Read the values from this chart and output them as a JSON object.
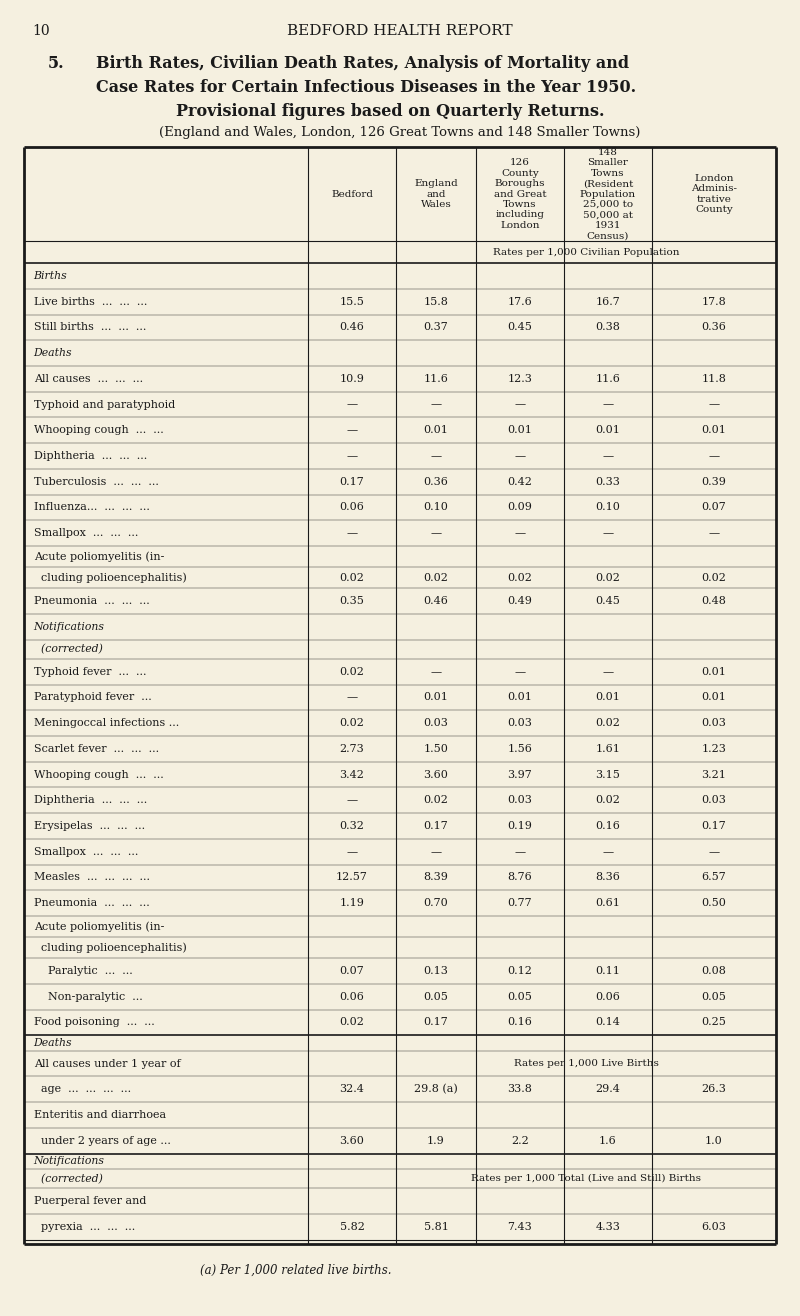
{
  "page_num": "10",
  "page_title": "BEDFORD HEALTH REPORT",
  "section_num": "5.",
  "title_line1": "Birth Rates, Civilian Death Rates, Analysis of Mortality and",
  "title_line2": "Case Rates for Certain Infectious Diseases in the Year 1950.",
  "title_line3": "Provisional figures based on Quarterly Returns.",
  "subtitle": "(England and Wales, London, 126 Great Towns and 148 Smaller Towns)",
  "col_header_texts": [
    "Bedford",
    "England\nand\nWales",
    "126\nCounty\nBoroughs\nand Great\nTowns\nincluding\nLondon",
    "148\nSmaller\nTowns\n(Resident\nPopulation\n25,000 to\n50,000 at\n1931\nCensus)",
    "London\nAdminis-\ntrative\nCounty"
  ],
  "rates_header": "Rates per 1,000 Civilian Population",
  "rows": [
    {
      "label": "Births",
      "bold": true,
      "italic": true,
      "values": [
        "",
        "",
        "",
        "",
        ""
      ]
    },
    {
      "label": "Live births  ...  ...  ...",
      "bold": false,
      "italic": false,
      "values": [
        "15.5",
        "15.8",
        "17.6",
        "16.7",
        "17.8"
      ]
    },
    {
      "label": "Still births  ...  ...  ...",
      "bold": false,
      "italic": false,
      "values": [
        "0.46",
        "0.37",
        "0.45",
        "0.38",
        "0.36"
      ]
    },
    {
      "label": "Deaths",
      "bold": true,
      "italic": true,
      "values": [
        "",
        "",
        "",
        "",
        ""
      ]
    },
    {
      "label": "All causes  ...  ...  ...",
      "bold": false,
      "italic": false,
      "values": [
        "10.9",
        "11.6",
        "12.3",
        "11.6",
        "11.8"
      ]
    },
    {
      "label": "Typhoid and paratyphoid",
      "bold": false,
      "italic": false,
      "values": [
        "—",
        "—",
        "—",
        "—",
        "—"
      ]
    },
    {
      "label": "Whooping cough  ...  ...",
      "bold": false,
      "italic": false,
      "values": [
        "—",
        "0.01",
        "0.01",
        "0.01",
        "0.01"
      ]
    },
    {
      "label": "Diphtheria  ...  ...  ...",
      "bold": false,
      "italic": false,
      "values": [
        "—",
        "—",
        "—",
        "—",
        "—"
      ]
    },
    {
      "label": "Tuberculosis  ...  ...  ...",
      "bold": false,
      "italic": false,
      "values": [
        "0.17",
        "0.36",
        "0.42",
        "0.33",
        "0.39"
      ]
    },
    {
      "label": "Influenza...  ...  ...  ...",
      "bold": false,
      "italic": false,
      "values": [
        "0.06",
        "0.10",
        "0.09",
        "0.10",
        "0.07"
      ]
    },
    {
      "label": "Smallpox  ...  ...  ...",
      "bold": false,
      "italic": false,
      "values": [
        "—",
        "—",
        "—",
        "—",
        "—"
      ]
    },
    {
      "label": "Acute poliomyelitis (in-",
      "bold": false,
      "italic": false,
      "values": [
        "",
        "",
        "",
        "",
        ""
      ]
    },
    {
      "label": "  cluding polioencephalitis)",
      "bold": false,
      "italic": false,
      "values": [
        "0.02",
        "0.02",
        "0.02",
        "0.02",
        "0.02"
      ]
    },
    {
      "label": "Pneumonia  ...  ...  ...",
      "bold": false,
      "italic": false,
      "values": [
        "0.35",
        "0.46",
        "0.49",
        "0.45",
        "0.48"
      ]
    },
    {
      "label": "Notifications",
      "bold": true,
      "italic": true,
      "values": [
        "",
        "",
        "",
        "",
        ""
      ]
    },
    {
      "label": "  (corrected)",
      "bold": true,
      "italic": true,
      "values": [
        "",
        "",
        "",
        "",
        ""
      ]
    },
    {
      "label": "Typhoid fever  ...  ...",
      "bold": false,
      "italic": false,
      "values": [
        "0.02",
        "—",
        "—",
        "—",
        "0.01"
      ]
    },
    {
      "label": "Paratyphoid fever  ...",
      "bold": false,
      "italic": false,
      "values": [
        "—",
        "0.01",
        "0.01",
        "0.01",
        "0.01"
      ]
    },
    {
      "label": "Meningoccal infections ...",
      "bold": false,
      "italic": false,
      "values": [
        "0.02",
        "0.03",
        "0.03",
        "0.02",
        "0.03"
      ]
    },
    {
      "label": "Scarlet fever  ...  ...  ...",
      "bold": false,
      "italic": false,
      "values": [
        "2.73",
        "1.50",
        "1.56",
        "1.61",
        "1.23"
      ]
    },
    {
      "label": "Whooping cough  ...  ...",
      "bold": false,
      "italic": false,
      "values": [
        "3.42",
        "3.60",
        "3.97",
        "3.15",
        "3.21"
      ]
    },
    {
      "label": "Diphtheria  ...  ...  ...",
      "bold": false,
      "italic": false,
      "values": [
        "—",
        "0.02",
        "0.03",
        "0.02",
        "0.03"
      ]
    },
    {
      "label": "Erysipelas  ...  ...  ...",
      "bold": false,
      "italic": false,
      "values": [
        "0.32",
        "0.17",
        "0.19",
        "0.16",
        "0.17"
      ]
    },
    {
      "label": "Smallpox  ...  ...  ...",
      "bold": false,
      "italic": false,
      "values": [
        "—",
        "—",
        "—",
        "—",
        "—"
      ]
    },
    {
      "label": "Measles  ...  ...  ...  ...",
      "bold": false,
      "italic": false,
      "values": [
        "12.57",
        "8.39",
        "8.76",
        "8.36",
        "6.57"
      ]
    },
    {
      "label": "Pneumonia  ...  ...  ...",
      "bold": false,
      "italic": false,
      "values": [
        "1.19",
        "0.70",
        "0.77",
        "0.61",
        "0.50"
      ]
    },
    {
      "label": "Acute poliomyelitis (in-",
      "bold": false,
      "italic": false,
      "values": [
        "",
        "",
        "",
        "",
        ""
      ]
    },
    {
      "label": "  cluding polioencephalitis)",
      "bold": false,
      "italic": false,
      "values": [
        "",
        "",
        "",
        "",
        ""
      ]
    },
    {
      "label": "    Paralytic  ...  ...",
      "bold": false,
      "italic": false,
      "values": [
        "0.07",
        "0.13",
        "0.12",
        "0.11",
        "0.08"
      ]
    },
    {
      "label": "    Non-paralytic  ...",
      "bold": false,
      "italic": false,
      "values": [
        "0.06",
        "0.05",
        "0.05",
        "0.06",
        "0.05"
      ]
    },
    {
      "label": "Food poisoning  ...  ...",
      "bold": false,
      "italic": false,
      "values": [
        "0.02",
        "0.17",
        "0.16",
        "0.14",
        "0.25"
      ]
    },
    {
      "label": "Deaths",
      "bold": true,
      "italic": true,
      "values": [
        "",
        "",
        "",
        "",
        ""
      ],
      "section_sep": true
    },
    {
      "label": "All causes under 1 year of",
      "bold": false,
      "italic": false,
      "values": [
        "",
        "",
        "",
        "",
        ""
      ],
      "span_note": "Rates per 1,000 Live Births",
      "span_row": true
    },
    {
      "label": "  age  ...  ...  ...  ...",
      "bold": false,
      "italic": false,
      "values": [
        "32.4",
        "29.8 (a)",
        "33.8",
        "29.4",
        "26.3"
      ]
    },
    {
      "label": "Enteritis and diarrhoea",
      "bold": false,
      "italic": false,
      "values": [
        "",
        "",
        "",
        "",
        ""
      ]
    },
    {
      "label": "  under 2 years of age ...",
      "bold": false,
      "italic": false,
      "values": [
        "3.60",
        "1.9",
        "2.2",
        "1.6",
        "1.0"
      ]
    },
    {
      "label": "Notifications",
      "bold": true,
      "italic": true,
      "values": [
        "",
        "",
        "",
        "",
        ""
      ],
      "section_sep": true
    },
    {
      "label": "  (corrected)",
      "bold": true,
      "italic": true,
      "values": [
        "",
        "",
        "",
        "",
        ""
      ],
      "span_note": "Rates per 1,000 Total (Live and Still) Births",
      "span_row": true
    },
    {
      "label": "Puerperal fever and",
      "bold": false,
      "italic": false,
      "values": [
        "",
        "",
        "",
        "",
        ""
      ]
    },
    {
      "label": "  pyrexia  ...  ...  ...",
      "bold": false,
      "italic": false,
      "values": [
        "5.82",
        "5.81",
        "7.43",
        "4.33",
        "6.03"
      ]
    }
  ],
  "footnote": "(a) Per 1,000 related live births.",
  "bg_color": "#f5f0e0",
  "text_color": "#1a1a1a",
  "line_color": "#1a1a1a"
}
